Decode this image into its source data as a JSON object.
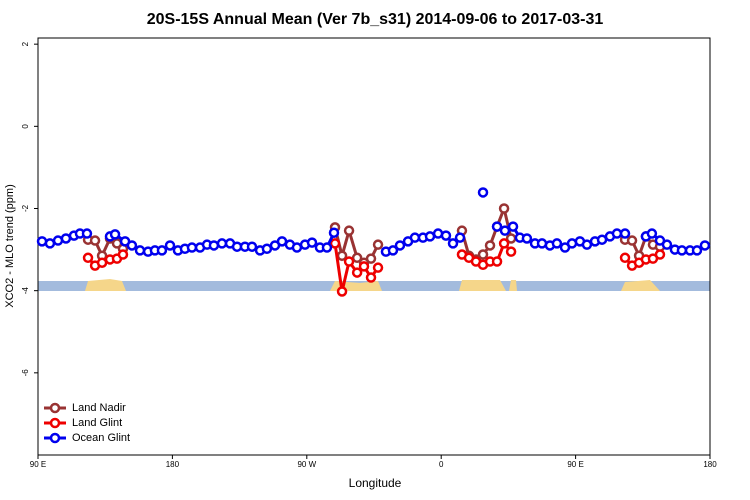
{
  "chart_data": {
    "type": "line",
    "title": "20S-15S Annual Mean (Ver 7b_s31)   2014-09-06 to 2017-03-31",
    "x_label": "Longitude",
    "y_label": "XCO2 - MLO trend (ppm)",
    "xlim": [
      90,
      540
    ],
    "xticks": [
      {
        "value": 90,
        "label": "90 E"
      },
      180,
      {
        "value": 270,
        "label": "90 W"
      },
      {
        "value": 360,
        "label": "0"
      },
      {
        "value": 450,
        "label": "90 E"
      },
      {
        "value": 540,
        "label": "180"
      }
    ],
    "ylim": [
      -8,
      2.15
    ],
    "yticks": [
      -6,
      -4,
      -2,
      0,
      2
    ],
    "legend": "bottom-left",
    "series": [
      {
        "name": "Land Nadir",
        "color": "#993333",
        "x": [
          123.5,
          128.2,
          132.9,
          138.2,
          142.9,
          146.9,
          null,
          288.9,
          293.6,
          298.3,
          303.7,
          308.3,
          313.0,
          317.7,
          null,
          373.9,
          378.6,
          383.3,
          388.0,
          392.7,
          397.4,
          402.1,
          406.8,
          null,
          483.1,
          487.8,
          492.5,
          497.1,
          501.8,
          506.5
        ],
        "values": [
          -2.76,
          -2.78,
          -3.15,
          -2.73,
          -2.85,
          -2.98,
          null,
          -2.46,
          -3.15,
          -2.54,
          -3.2,
          -3.32,
          -3.22,
          -2.88,
          null,
          -2.54,
          -3.15,
          -3.24,
          -3.12,
          -2.9,
          -2.44,
          -2.0,
          -2.73,
          null,
          -2.76,
          -2.78,
          -3.15,
          -2.68,
          -2.88,
          -2.93
        ]
      },
      {
        "name": "Land Glint",
        "color": "#ee0000",
        "x": [
          123.5,
          128.2,
          132.9,
          138.2,
          142.9,
          146.9,
          null,
          288.9,
          293.6,
          298.3,
          303.7,
          308.3,
          313.0,
          317.7,
          null,
          373.9,
          378.6,
          383.3,
          388.0,
          392.7,
          397.4,
          402.1,
          406.8,
          null,
          483.1,
          487.8,
          492.5,
          497.1,
          501.8,
          506.5
        ],
        "values": [
          -3.2,
          -3.39,
          -3.32,
          -3.24,
          -3.22,
          -3.12,
          null,
          -2.85,
          -4.02,
          -3.29,
          -3.56,
          -3.41,
          -3.68,
          -3.44,
          null,
          -3.12,
          -3.2,
          -3.29,
          -3.37,
          -3.29,
          -3.29,
          -2.85,
          -3.05,
          null,
          -3.2,
          -3.39,
          -3.32,
          -3.24,
          -3.22,
          -3.12
        ]
      },
      {
        "name": "Ocean Glint",
        "color": "#0000ee",
        "x": [
          92.7,
          98.0,
          103.4,
          108.7,
          114.1,
          118.1,
          122.8,
          null,
          138.2,
          141.6,
          148.3,
          152.9,
          158.3,
          163.7,
          168.3,
          173.0,
          178.4,
          183.7,
          188.4,
          193.1,
          198.5,
          203.2,
          207.8,
          213.2,
          218.6,
          223.3,
          228.6,
          233.3,
          238.7,
          243.3,
          248.7,
          253.4,
          258.7,
          263.4,
          268.8,
          273.5,
          278.8,
          283.5,
          288.2,
          null,
          323.0,
          327.7,
          332.4,
          337.8,
          342.4,
          347.8,
          352.5,
          357.9,
          363.2,
          367.9,
          372.6,
          null,
          388.0,
          null,
          397.4,
          402.7,
          408.1,
          412.7,
          417.4,
          422.8,
          427.5,
          432.8,
          437.5,
          442.9,
          447.6,
          452.9,
          457.6,
          463.0,
          467.7,
          473.0,
          477.7,
          483.1,
          null,
          497.1,
          501.1,
          506.5,
          511.2,
          516.5,
          521.2,
          526.6,
          531.3,
          536.6
        ],
        "values": [
          -2.8,
          -2.85,
          -2.78,
          -2.73,
          -2.66,
          -2.61,
          -2.61,
          null,
          -2.68,
          -2.63,
          -2.8,
          -2.9,
          -3.02,
          -3.05,
          -3.02,
          -3.02,
          -2.9,
          -3.02,
          -2.98,
          -2.95,
          -2.95,
          -2.88,
          -2.9,
          -2.85,
          -2.85,
          -2.93,
          -2.93,
          -2.93,
          -3.02,
          -2.98,
          -2.9,
          -2.8,
          -2.88,
          -2.95,
          -2.88,
          -2.83,
          -2.95,
          -2.95,
          -2.59,
          null,
          -3.05,
          -3.02,
          -2.9,
          -2.8,
          -2.71,
          -2.71,
          -2.68,
          -2.61,
          -2.66,
          -2.85,
          -2.71,
          null,
          -1.61,
          null,
          -2.44,
          -2.54,
          -2.44,
          -2.71,
          -2.73,
          -2.85,
          -2.85,
          -2.9,
          -2.85,
          -2.95,
          -2.85,
          -2.8,
          -2.88,
          -2.8,
          -2.76,
          -2.68,
          -2.61,
          -2.61,
          null,
          -2.68,
          -2.61,
          -2.78,
          -2.88,
          -3.0,
          -3.02,
          -3.02,
          -3.02,
          -2.9
        ]
      }
    ]
  }
}
